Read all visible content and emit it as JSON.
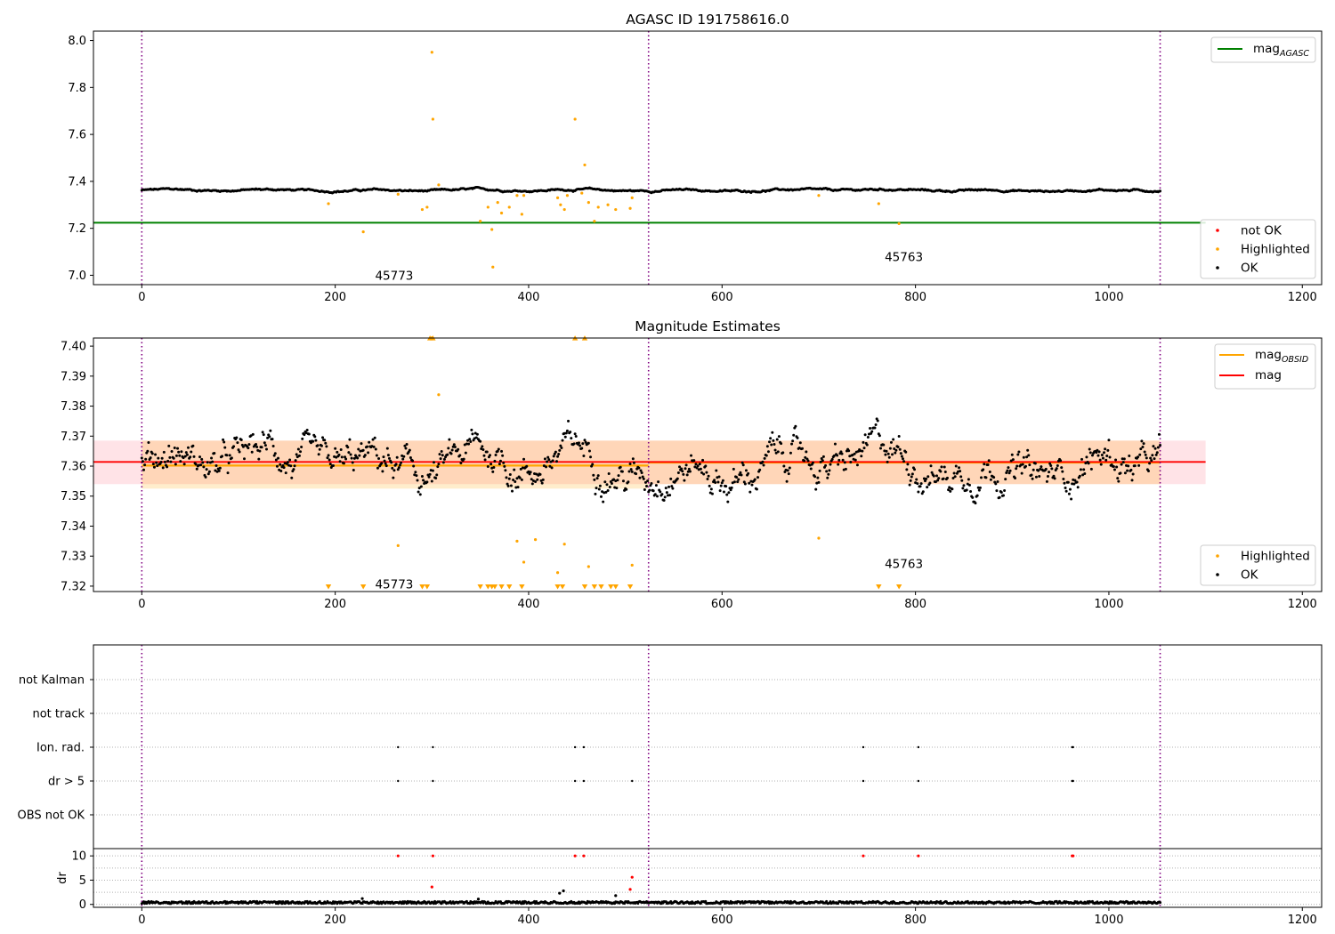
{
  "chart_data": [
    {
      "type": "scatter",
      "title": "AGASC ID 191758616.0",
      "xlabel": "",
      "ylabel": "",
      "xlim": [
        -50,
        1220
      ],
      "ylim": [
        6.96,
        8.04
      ],
      "x_ticks": [
        0,
        200,
        400,
        600,
        800,
        1000,
        1200
      ],
      "x_tick_labels": [
        "0",
        "200",
        "400",
        "600",
        "800",
        "1000",
        "1200"
      ],
      "y_ticks": [
        7.0,
        7.2,
        7.4,
        7.6,
        7.8,
        8.0
      ],
      "y_tick_labels": [
        "7.0",
        "7.2",
        "7.4",
        "7.6",
        "7.8",
        "8.0"
      ],
      "observation_boundaries": [
        0,
        524,
        1053
      ],
      "annotations": [
        {
          "text": "45773",
          "x": 261,
          "y": 7.0
        },
        {
          "text": "45763",
          "x": 788,
          "y": 7.08
        }
      ],
      "reference_lines": [
        {
          "name": "mag_AGASC",
          "y": 7.224,
          "x_range": [
            -50,
            1100
          ],
          "color": "#008000"
        }
      ],
      "ok_series": {
        "name": "OK",
        "color": "#000000",
        "x_range": [
          0,
          1053
        ],
        "center": 7.362,
        "spread": 0.007,
        "x_description": "one estimate per frame index 0-1053"
      },
      "series": [
        {
          "name": "not OK",
          "color": "#ff0000",
          "x": [],
          "y": []
        },
        {
          "name": "Highlighted",
          "color": "#ffa500",
          "x": [
            193,
            229,
            265,
            290,
            295,
            300,
            301,
            307,
            350,
            358,
            362,
            363,
            368,
            372,
            380,
            388,
            393,
            395,
            430,
            433,
            437,
            440,
            448,
            455,
            458,
            462,
            468,
            472,
            482,
            490,
            505,
            507,
            700,
            762,
            783
          ],
          "y": [
            7.305,
            7.185,
            7.345,
            7.28,
            7.29,
            7.95,
            7.665,
            7.385,
            7.23,
            7.29,
            7.195,
            7.035,
            7.31,
            7.265,
            7.29,
            7.34,
            7.26,
            7.34,
            7.33,
            7.3,
            7.28,
            7.34,
            7.665,
            7.35,
            7.47,
            7.31,
            7.23,
            7.29,
            7.3,
            7.28,
            7.285,
            7.33,
            7.34,
            7.305,
            7.22
          ]
        }
      ],
      "legend": {
        "placement_upper": "upper-right",
        "placement_lower": "lower-right",
        "entries_upper": [
          {
            "label": "mag",
            "sub": "AGASC",
            "kind": "line",
            "color": "#008000"
          }
        ],
        "entries_lower": [
          {
            "label": "not OK",
            "kind": "dot",
            "color": "#ff0000"
          },
          {
            "label": "Highlighted",
            "kind": "dot",
            "color": "#ffa500"
          },
          {
            "label": "OK",
            "kind": "dot",
            "color": "#000000"
          }
        ]
      }
    },
    {
      "type": "scatter",
      "title": "Magnitude Estimates",
      "xlabel": "",
      "ylabel": "",
      "xlim": [
        -50,
        1220
      ],
      "ylim": [
        7.3182,
        7.4027
      ],
      "x_ticks": [
        0,
        200,
        400,
        600,
        800,
        1000,
        1200
      ],
      "x_tick_labels": [
        "0",
        "200",
        "400",
        "600",
        "800",
        "1000",
        "1200"
      ],
      "y_ticks": [
        7.32,
        7.33,
        7.34,
        7.35,
        7.36,
        7.37,
        7.38,
        7.39,
        7.4
      ],
      "y_tick_labels": [
        "7.32",
        "7.33",
        "7.34",
        "7.35",
        "7.36",
        "7.37",
        "7.38",
        "7.39",
        "7.40"
      ],
      "observation_boundaries": [
        0,
        524,
        1053
      ],
      "annotations": [
        {
          "text": "45773",
          "x": 261,
          "y": 7.3207
        },
        {
          "text": "45763",
          "x": 788,
          "y": 7.3275
        }
      ],
      "bands": [
        {
          "name": "mag band",
          "y0": 7.354,
          "y1": 7.3685,
          "x_range": [
            -50,
            1100
          ],
          "color": "#ff9aa8",
          "opacity": 0.28
        },
        {
          "name": "mag_OBSID 45773 band",
          "y0": 7.3525,
          "y1": 7.3685,
          "x_range": [
            0,
            524
          ],
          "color": "#ffa500",
          "opacity": 0.2
        },
        {
          "name": "mag_OBSID 45763 band",
          "y0": 7.354,
          "y1": 7.3685,
          "x_range": [
            524,
            1053
          ],
          "color": "#ffa500",
          "opacity": 0.2
        }
      ],
      "reference_lines": [
        {
          "name": "mag_OBSID",
          "segments": [
            {
              "x_range": [
                0,
                524
              ],
              "y": 7.3602
            },
            {
              "x_range": [
                524,
                1053
              ],
              "y": 7.3612
            }
          ],
          "color": "#ffa500"
        },
        {
          "name": "mag",
          "y": 7.3614,
          "x_range": [
            -50,
            1100
          ],
          "color": "#ff0000"
        }
      ],
      "ok_series": {
        "name": "OK",
        "color": "#000000",
        "x_range": [
          0,
          1053
        ],
        "center": 7.3605,
        "spread": 0.0095,
        "x_description": "one estimate per frame index 0-1053"
      },
      "series": [
        {
          "name": "Highlighted",
          "color": "#ffa500",
          "x": [
            265,
            300,
            307,
            388,
            395,
            407,
            430,
            437,
            462,
            507,
            700
          ],
          "y": [
            7.3335,
            7.4028,
            7.3838,
            7.335,
            7.328,
            7.3355,
            7.3245,
            7.334,
            7.3265,
            7.327,
            7.336
          ]
        },
        {
          "name": "Highlighted (clipped low)",
          "color": "#ffa500",
          "marker": "triangle-down",
          "x": [
            193,
            229,
            290,
            295,
            350,
            358,
            362,
            365,
            372,
            380,
            393,
            430,
            435,
            458,
            468,
            475,
            485,
            490,
            505,
            762,
            783
          ],
          "y": [
            7.3197,
            7.3197,
            7.3197,
            7.3197,
            7.3197,
            7.3197,
            7.3197,
            7.3197,
            7.3197,
            7.3197,
            7.3197,
            7.3197,
            7.3197,
            7.3197,
            7.3197,
            7.3197,
            7.3197,
            7.3197,
            7.3197,
            7.3197,
            7.3197
          ]
        },
        {
          "name": "Highlighted (clipped high)",
          "color": "#ffa500",
          "marker": "triangle-up",
          "x": [
            298,
            301,
            448,
            458
          ],
          "y": [
            7.4028,
            7.4028,
            7.4028,
            7.4028
          ]
        }
      ],
      "legend": {
        "placement_upper": "upper-right",
        "placement_lower": "lower-right",
        "entries_upper": [
          {
            "label": "mag",
            "sub": "OBSID",
            "kind": "line",
            "color": "#ffa500"
          },
          {
            "label": "mag",
            "sub": "",
            "kind": "line",
            "color": "#ff0000"
          }
        ],
        "entries_lower": [
          {
            "label": "Highlighted",
            "kind": "dot",
            "color": "#ffa500"
          },
          {
            "label": "OK",
            "kind": "dot",
            "color": "#000000"
          }
        ]
      }
    },
    {
      "type": "scatter",
      "title": "",
      "xlabel": "",
      "ylabel": "",
      "xlim": [
        -50,
        1220
      ],
      "categories": [
        "not Kalman",
        "not track",
        "Ion. rad.",
        "dr > 5",
        "OBS not OK"
      ],
      "observation_boundaries": [
        0,
        524,
        1053
      ],
      "series": [
        {
          "name": "Ion. rad.",
          "color": "#000000",
          "x": [
            265,
            301,
            448,
            457,
            746,
            803,
            962,
            963
          ]
        },
        {
          "name": "dr > 5",
          "color": "#000000",
          "x": [
            265,
            301,
            448,
            457,
            507,
            746,
            803,
            962,
            963
          ]
        }
      ]
    },
    {
      "type": "scatter",
      "title": "",
      "xlabel": "",
      "ylabel": "dr",
      "xlim": [
        -50,
        1220
      ],
      "ylim": [
        -0.6,
        11.5
      ],
      "x_ticks": [
        0,
        200,
        400,
        600,
        800,
        1000,
        1200
      ],
      "x_tick_labels": [
        "0",
        "200",
        "400",
        "600",
        "800",
        "1000",
        "1200"
      ],
      "y_ticks": [
        0,
        5,
        10
      ],
      "y_tick_labels": [
        "0",
        "5",
        "10"
      ],
      "observation_boundaries": [
        0,
        524,
        1053
      ],
      "ok_series": {
        "name": "OK",
        "color": "#000000",
        "x_range": [
          0,
          1053
        ],
        "center": 0.35,
        "spread": 0.35
      },
      "series": [
        {
          "name": "not OK",
          "color": "#ff0000",
          "x": [
            265,
            300,
            301,
            448,
            457,
            505,
            507,
            746,
            803,
            962,
            963
          ],
          "y": [
            10,
            3.6,
            10,
            10,
            10,
            3.1,
            5.6,
            10,
            10,
            10,
            10
          ]
        },
        {
          "name": "scattered large dr",
          "color": "#000000",
          "x": [
            228,
            348,
            432,
            436,
            490
          ],
          "y": [
            1.2,
            1.1,
            2.3,
            2.8,
            1.8
          ]
        }
      ]
    }
  ]
}
